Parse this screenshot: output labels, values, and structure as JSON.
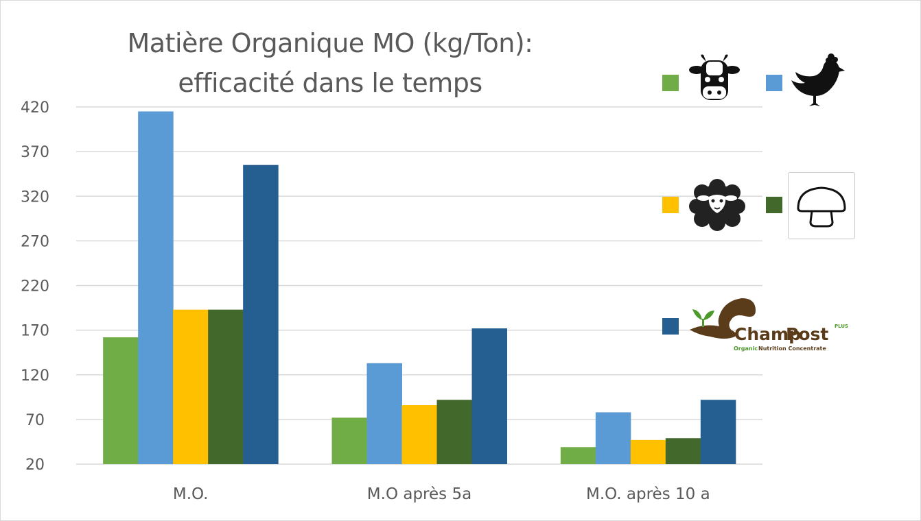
{
  "chart_data": {
    "type": "bar",
    "title_line1": "Matière Organique MO (kg/Ton):",
    "title_line2": "efficacité dans le temps",
    "categories": [
      "M.O.",
      "M.O après 5a",
      "M.O. après 10 a"
    ],
    "ylim": [
      20,
      420
    ],
    "yticks": [
      20,
      70,
      120,
      170,
      220,
      270,
      320,
      370,
      420
    ],
    "grid": true,
    "legend_position": "right",
    "series": [
      {
        "icon": "cow-icon",
        "color": "#70ad47",
        "values": [
          162,
          72,
          39
        ]
      },
      {
        "icon": "chicken-icon",
        "color": "#5b9bd5",
        "values": [
          415,
          133,
          78
        ]
      },
      {
        "icon": "sheep-icon",
        "color": "#ffc000",
        "values": [
          193,
          86,
          47
        ]
      },
      {
        "icon": "mushroom-icon",
        "color": "#43682b",
        "values": [
          193,
          92,
          49
        ]
      },
      {
        "icon": "champpost-logo",
        "color": "#255e91",
        "values": [
          355,
          172,
          92
        ]
      }
    ]
  },
  "logo": {
    "brand_left": "Champ",
    "brand_right": "Post",
    "plus": "PLUS",
    "tagline_green": "Organic",
    "tagline_dark": "Nutrition Concentrate"
  }
}
